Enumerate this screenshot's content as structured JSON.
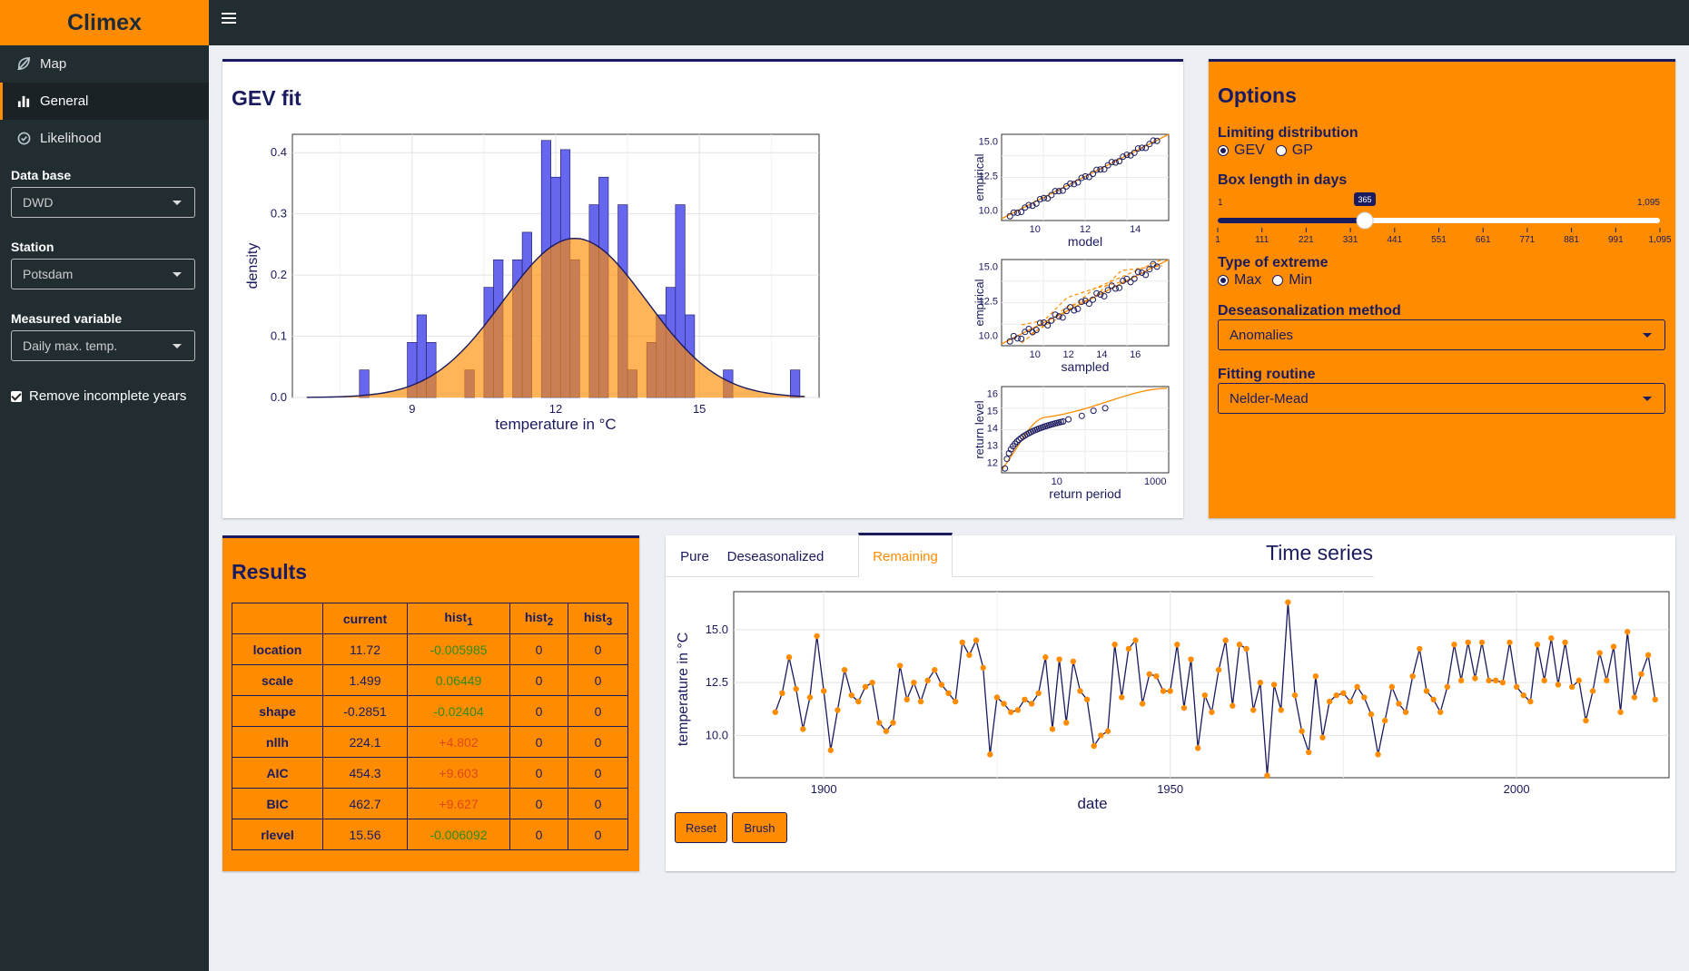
{
  "app": {
    "brand": "Climex"
  },
  "sidebar": {
    "menu": [
      {
        "label": "Map",
        "icon": "leaf-icon"
      },
      {
        "label": "General",
        "icon": "bar-chart-icon",
        "active": true
      },
      {
        "label": "Likelihood",
        "icon": "check-circle-icon"
      }
    ],
    "database": {
      "label": "Data base",
      "value": "DWD"
    },
    "station": {
      "label": "Station",
      "value": "Potsdam"
    },
    "variable": {
      "label": "Measured variable",
      "value": "Daily max. temp."
    },
    "incomplete": {
      "label": "Remove incomplete years",
      "checked": true
    }
  },
  "gev": {
    "title": "GEV fit",
    "hist": {
      "xlabel": "temperature in °C",
      "ylabel": "density",
      "xticks": [
        "9",
        "12",
        "15"
      ],
      "yticks": [
        "0.0",
        "0.1",
        "0.2",
        "0.3",
        "0.4"
      ]
    },
    "qq_model": {
      "xlabel": "model",
      "ylabel": "empirical",
      "xticks": [
        "10",
        "12",
        "14"
      ],
      "yticks": [
        "10.0",
        "12.5",
        "15.0"
      ]
    },
    "qq_sampled": {
      "xlabel": "sampled",
      "ylabel": "empirical",
      "xticks": [
        "10",
        "12",
        "14",
        "16"
      ],
      "yticks": [
        "10.0",
        "12.5",
        "15.0"
      ]
    },
    "return_level": {
      "xlabel": "return period",
      "ylabel": "return level",
      "xticks": [
        "10",
        "1000"
      ],
      "yticks": [
        "12",
        "13",
        "14",
        "15",
        "16"
      ]
    }
  },
  "options": {
    "title": "Options",
    "limiting": {
      "label": "Limiting distribution",
      "options": [
        "GEV",
        "GP"
      ],
      "selected": "GEV"
    },
    "box_length": {
      "label": "Box length in days",
      "min_label": "1",
      "max_label": "1,095",
      "value_label": "365",
      "value": 365,
      "min": 1,
      "max": 1095,
      "ticks": [
        "1",
        "111",
        "221",
        "331",
        "441",
        "551",
        "661",
        "771",
        "881",
        "991",
        "1,095"
      ]
    },
    "extreme": {
      "label": "Type of extreme",
      "options": [
        "Max",
        "Min"
      ],
      "selected": "Max"
    },
    "deseason": {
      "label": "Deseasonalization method",
      "value": "Anomalies"
    },
    "fitting": {
      "label": "Fitting routine",
      "value": "Nelder-Mead"
    }
  },
  "results": {
    "title": "Results",
    "columns": [
      "",
      "current",
      "hist",
      "hist",
      "hist"
    ],
    "subscripts": [
      "",
      "",
      "1",
      "2",
      "3"
    ],
    "rows": [
      {
        "name": "location",
        "current": "11.72",
        "hist1": "-0.005985",
        "hist2": "0",
        "hist3": "0"
      },
      {
        "name": "scale",
        "current": "1.499",
        "hist1": "0.06449",
        "hist2": "0",
        "hist3": "0"
      },
      {
        "name": "shape",
        "current": "-0.2851",
        "hist1": "-0.02404",
        "hist2": "0",
        "hist3": "0"
      },
      {
        "name": "nllh",
        "current": "224.1",
        "hist1": "+4.802",
        "hist2": "0",
        "hist3": "0"
      },
      {
        "name": "AIC",
        "current": "454.3",
        "hist1": "+9.603",
        "hist2": "0",
        "hist3": "0"
      },
      {
        "name": "BIC",
        "current": "462.7",
        "hist1": "+9.627",
        "hist2": "0",
        "hist3": "0"
      },
      {
        "name": "rlevel",
        "current": "15.56",
        "hist1": "-0.006092",
        "hist2": "0",
        "hist3": "0"
      }
    ]
  },
  "timeseries": {
    "title": "Time series",
    "tabs": [
      "Pure",
      "Deseasonalized",
      "Remaining"
    ],
    "active_tab": "Remaining",
    "xlabel": "date",
    "ylabel": "temperature in °C",
    "xticks": [
      "1900",
      "1950",
      "2000"
    ],
    "yticks": [
      "10.0",
      "12.5",
      "15.0"
    ],
    "reset_label": "Reset",
    "brush_label": "Brush"
  },
  "colors": {
    "accent": "#ff8c00",
    "navy": "#1a1a5e",
    "bar": "#6666ee",
    "sidebar": "#222d32"
  }
}
